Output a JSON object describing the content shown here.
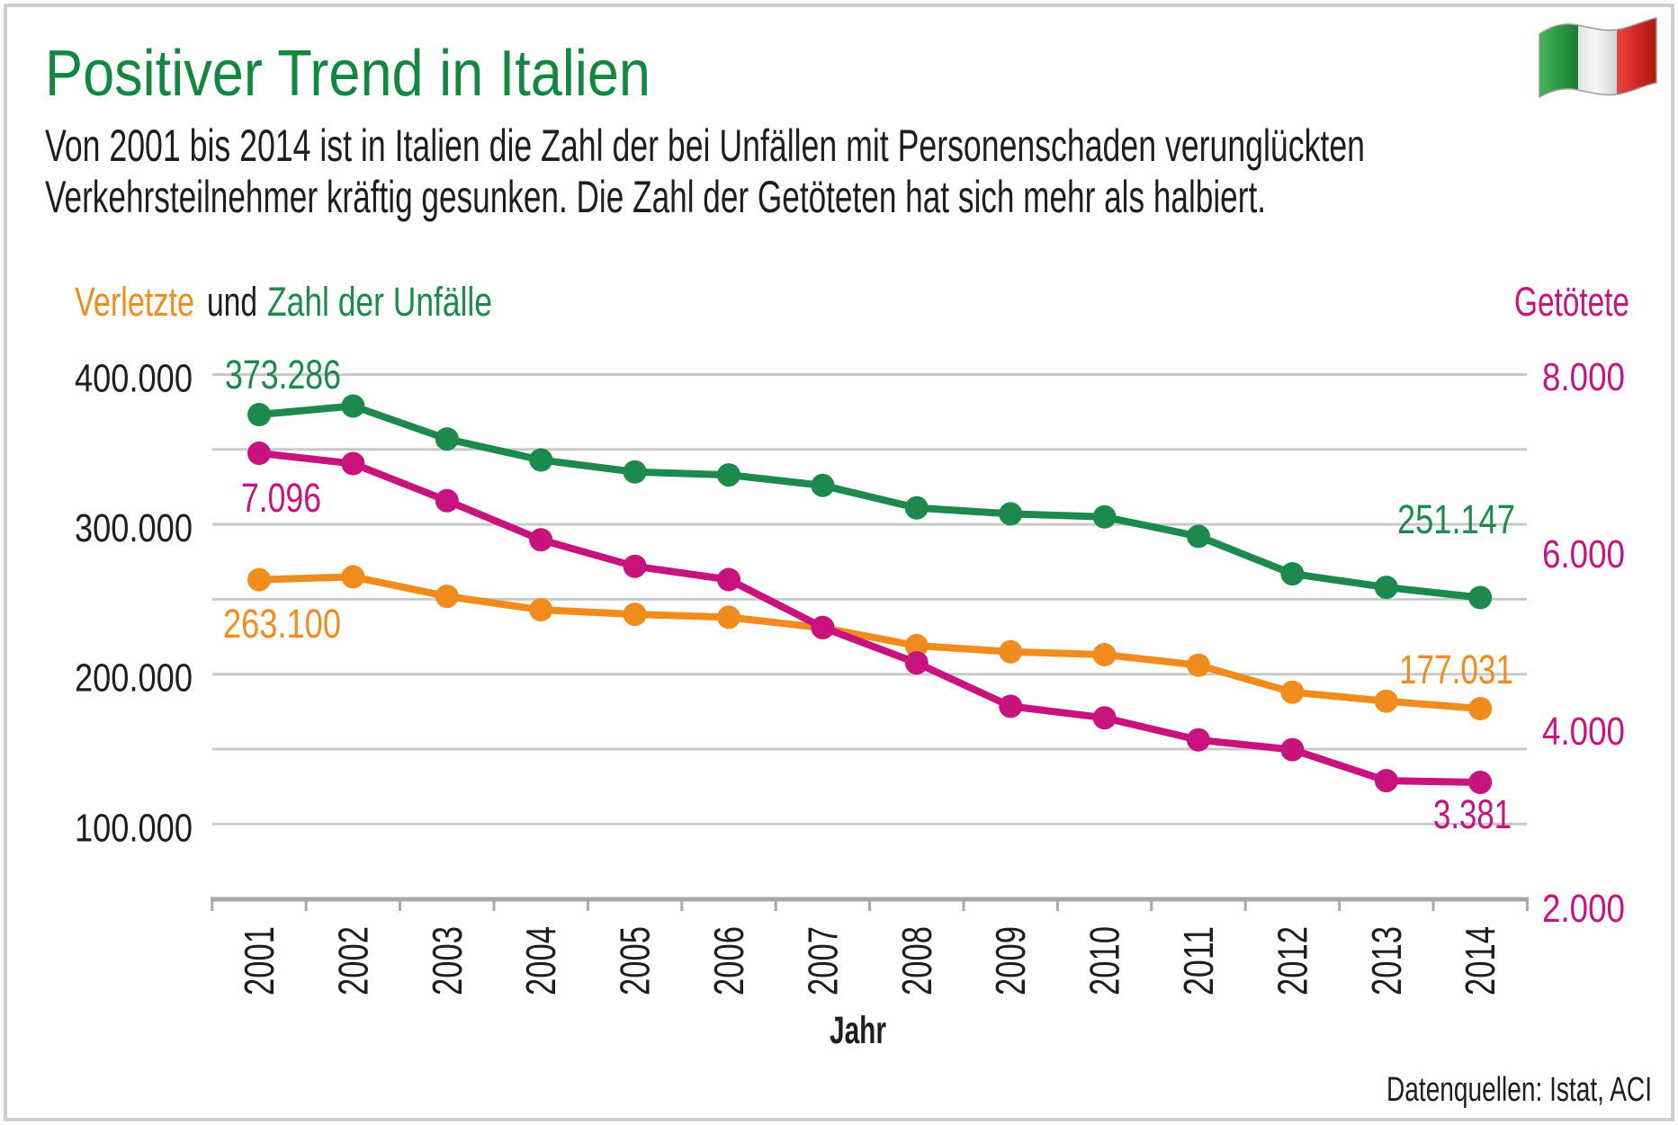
{
  "subtitle": [
    "Von 2001 bis 2014 ist in Italien die Zahl der bei Unfällen mit Personenschaden verunglückten",
    "Verkehrsteilnehmer kräftig gesunken. Die Zahl der Getöteten hat sich mehr als halbiert."
  ],
  "source": "Datenquellen: Istat, ACI",
  "flag_icon": "italy-flag-icon",
  "colors": {
    "title": "#13873f",
    "text": "#1e1e1e",
    "green": "#1b8a4c",
    "orange": "#f08c1e",
    "magenta": "#c8137f",
    "grid": "#c9c9c9",
    "axis": "#a8a8a8",
    "frame": "#cfcfcf",
    "flag_green": "#2a9a45",
    "flag_white": "#f6f6f6",
    "flag_red": "#d3261f"
  },
  "chart_data": {
    "type": "line",
    "title": "Positiver Trend in Italien",
    "xlabel": "Jahr",
    "legend_connector": "und",
    "categories": [
      "2001",
      "2002",
      "2003",
      "2004",
      "2005",
      "2006",
      "2007",
      "2008",
      "2009",
      "2010",
      "2011",
      "2012",
      "2013",
      "2014"
    ],
    "y_left": {
      "ylim": [
        50000,
        400000
      ],
      "ticks": [
        400000,
        300000,
        200000,
        100000
      ],
      "tick_labels": [
        "400.000",
        "300.000",
        "200.000",
        "100.000"
      ],
      "grid": [
        400000,
        350000,
        300000,
        250000,
        200000,
        150000,
        100000
      ]
    },
    "y_right": {
      "ylim": [
        2000,
        8000
      ],
      "ticks": [
        8000,
        6000,
        4000,
        2000
      ],
      "tick_labels": [
        "8.000",
        "6.000",
        "4.000",
        "2.000"
      ]
    },
    "grid": true,
    "series": [
      {
        "name": "Zahl der Unfälle",
        "axis": "left",
        "color": "#1b8a4c",
        "values": [
          373286,
          379000,
          357000,
          343000,
          335000,
          333000,
          326000,
          311000,
          307000,
          305000,
          292000,
          267000,
          258000,
          251147
        ],
        "start_label": "373.286",
        "end_label": "251.147"
      },
      {
        "name": "Verletzte",
        "axis": "left",
        "color": "#f08c1e",
        "values": [
          263100,
          265000,
          252000,
          243000,
          240000,
          238000,
          231000,
          219000,
          215000,
          213000,
          206000,
          188000,
          182000,
          177031
        ],
        "start_label": "263.100",
        "end_label": "177.031"
      },
      {
        "name": "Getötete",
        "axis": "right",
        "color": "#c8137f",
        "values": [
          7096,
          6980,
          6560,
          6120,
          5820,
          5670,
          5130,
          4730,
          4240,
          4110,
          3860,
          3750,
          3400,
          3381
        ],
        "start_label": "7.096",
        "end_label": "3.381"
      }
    ]
  }
}
